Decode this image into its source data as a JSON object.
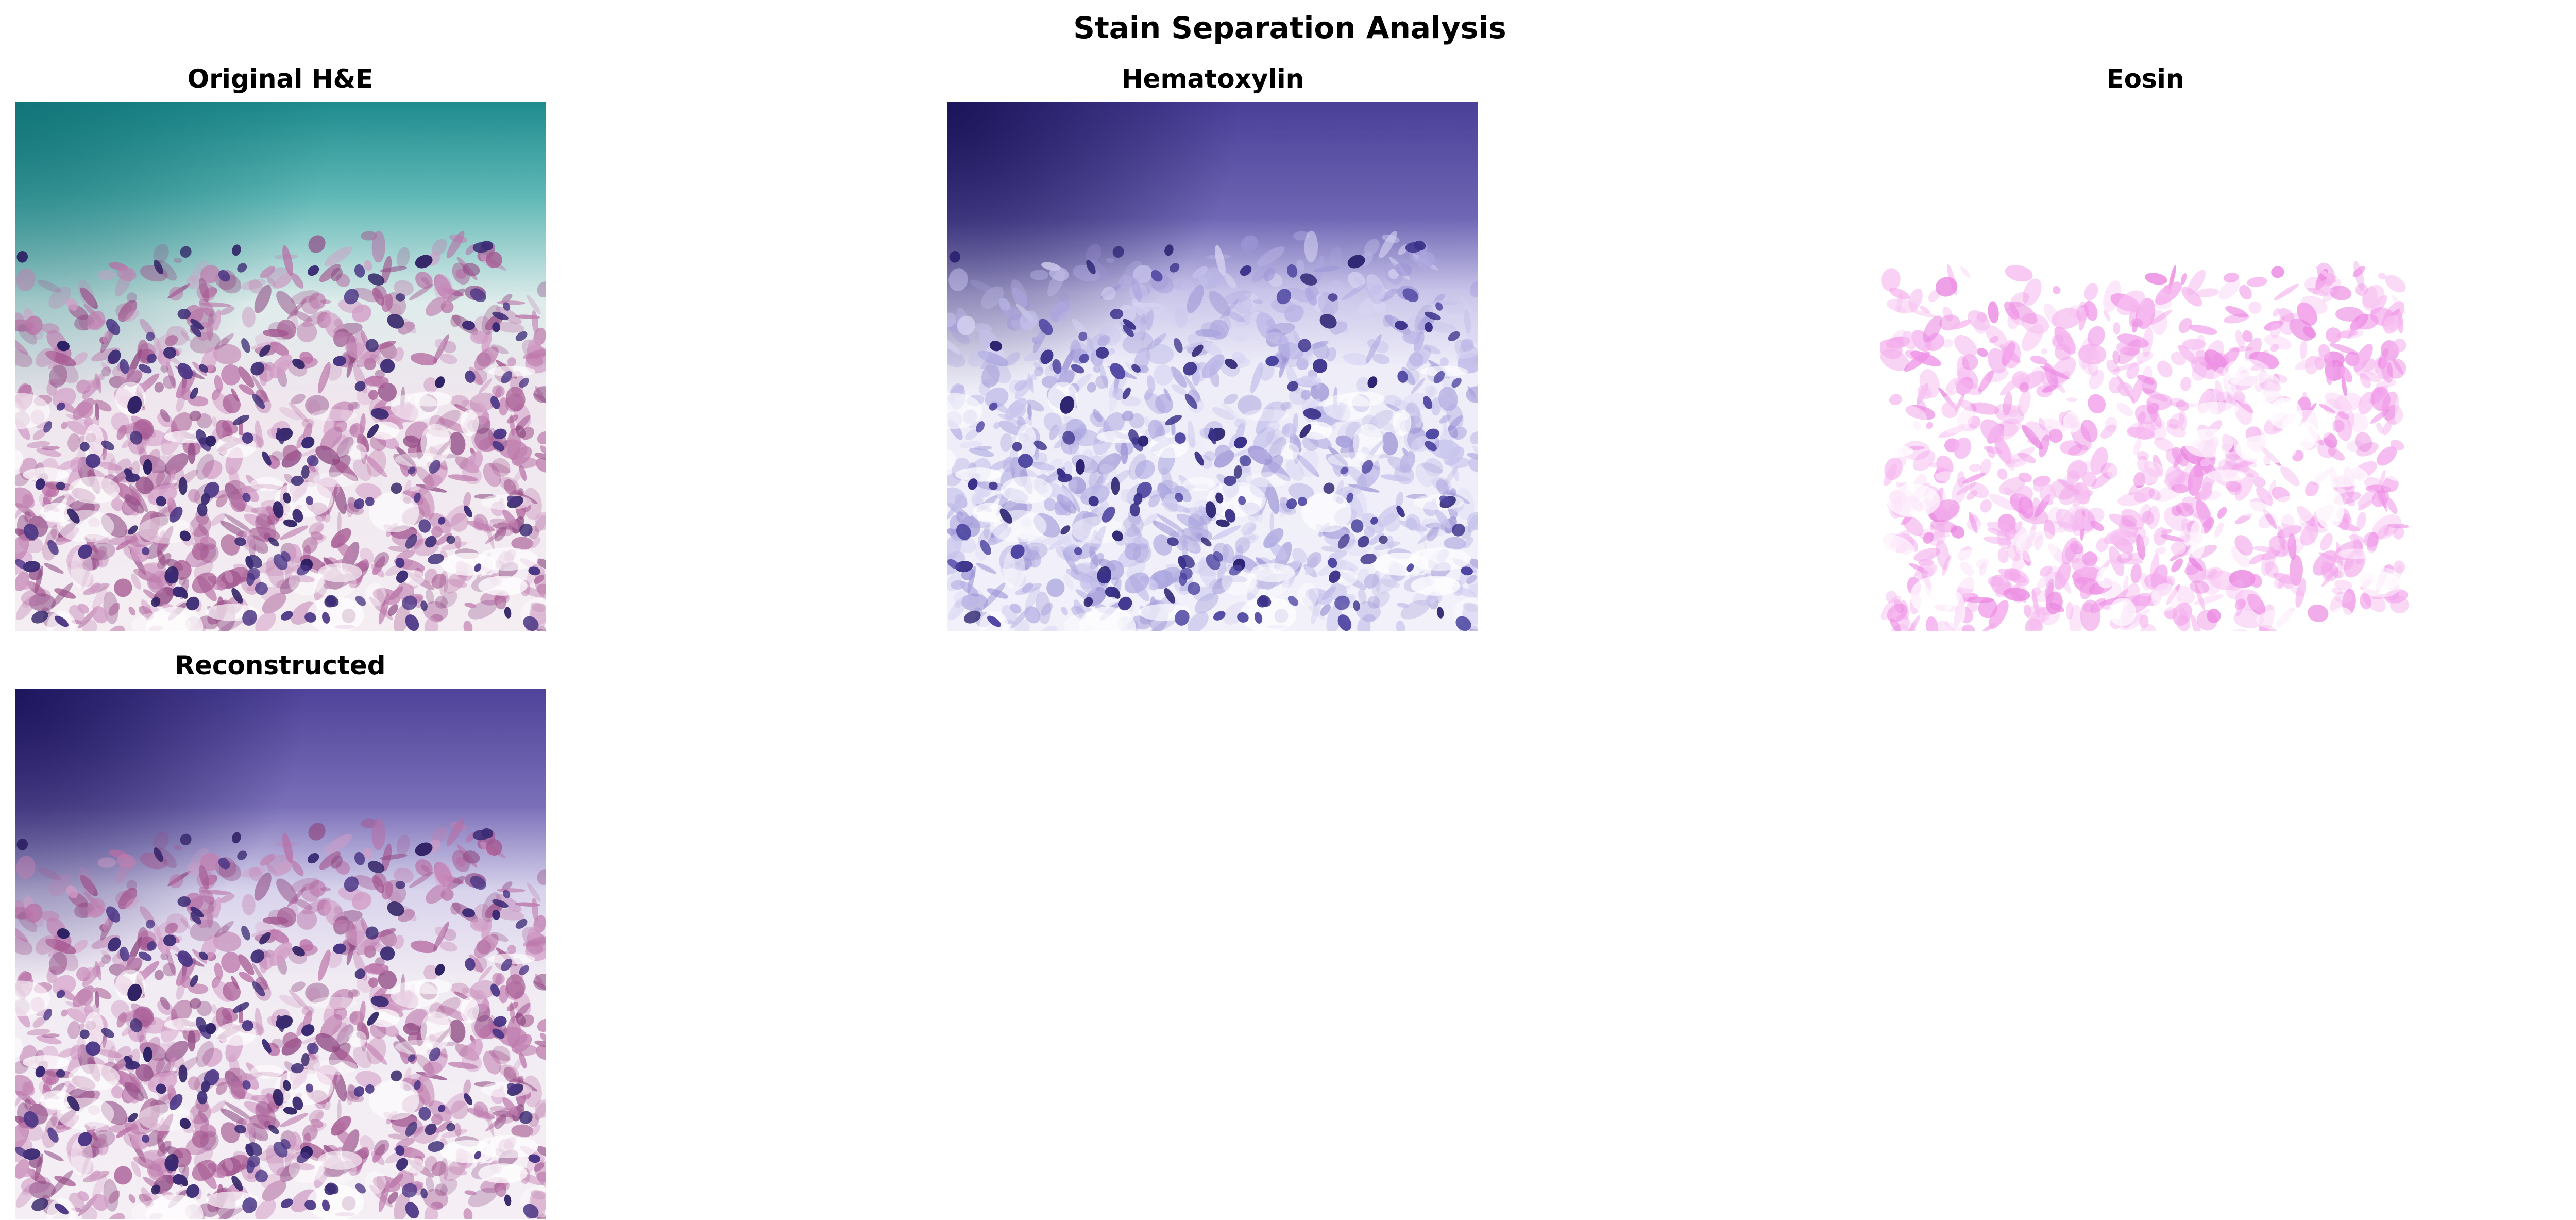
{
  "figure": {
    "title": "Stain Separation Analysis"
  },
  "panels": [
    {
      "title": "Original H&E",
      "image": "original-he-tissue-image"
    },
    {
      "title": "Hematoxylin",
      "image": "hematoxylin-channel-image"
    },
    {
      "title": "Eosin",
      "image": "eosin-channel-image"
    },
    {
      "title": "Reconstructed",
      "image": "reconstructed-tissue-image"
    }
  ],
  "colors": {
    "background": "#ffffff",
    "original_top": "#1f8b8e",
    "original_tissue": "#a4568f",
    "nucleus": "#2d1f63",
    "hematoxylin_top": "#1f1760",
    "hematoxylin_tissue": "#c6c2ec",
    "eosin_tissue": "#f3a6ec",
    "reconstructed_top": "#221a66"
  }
}
